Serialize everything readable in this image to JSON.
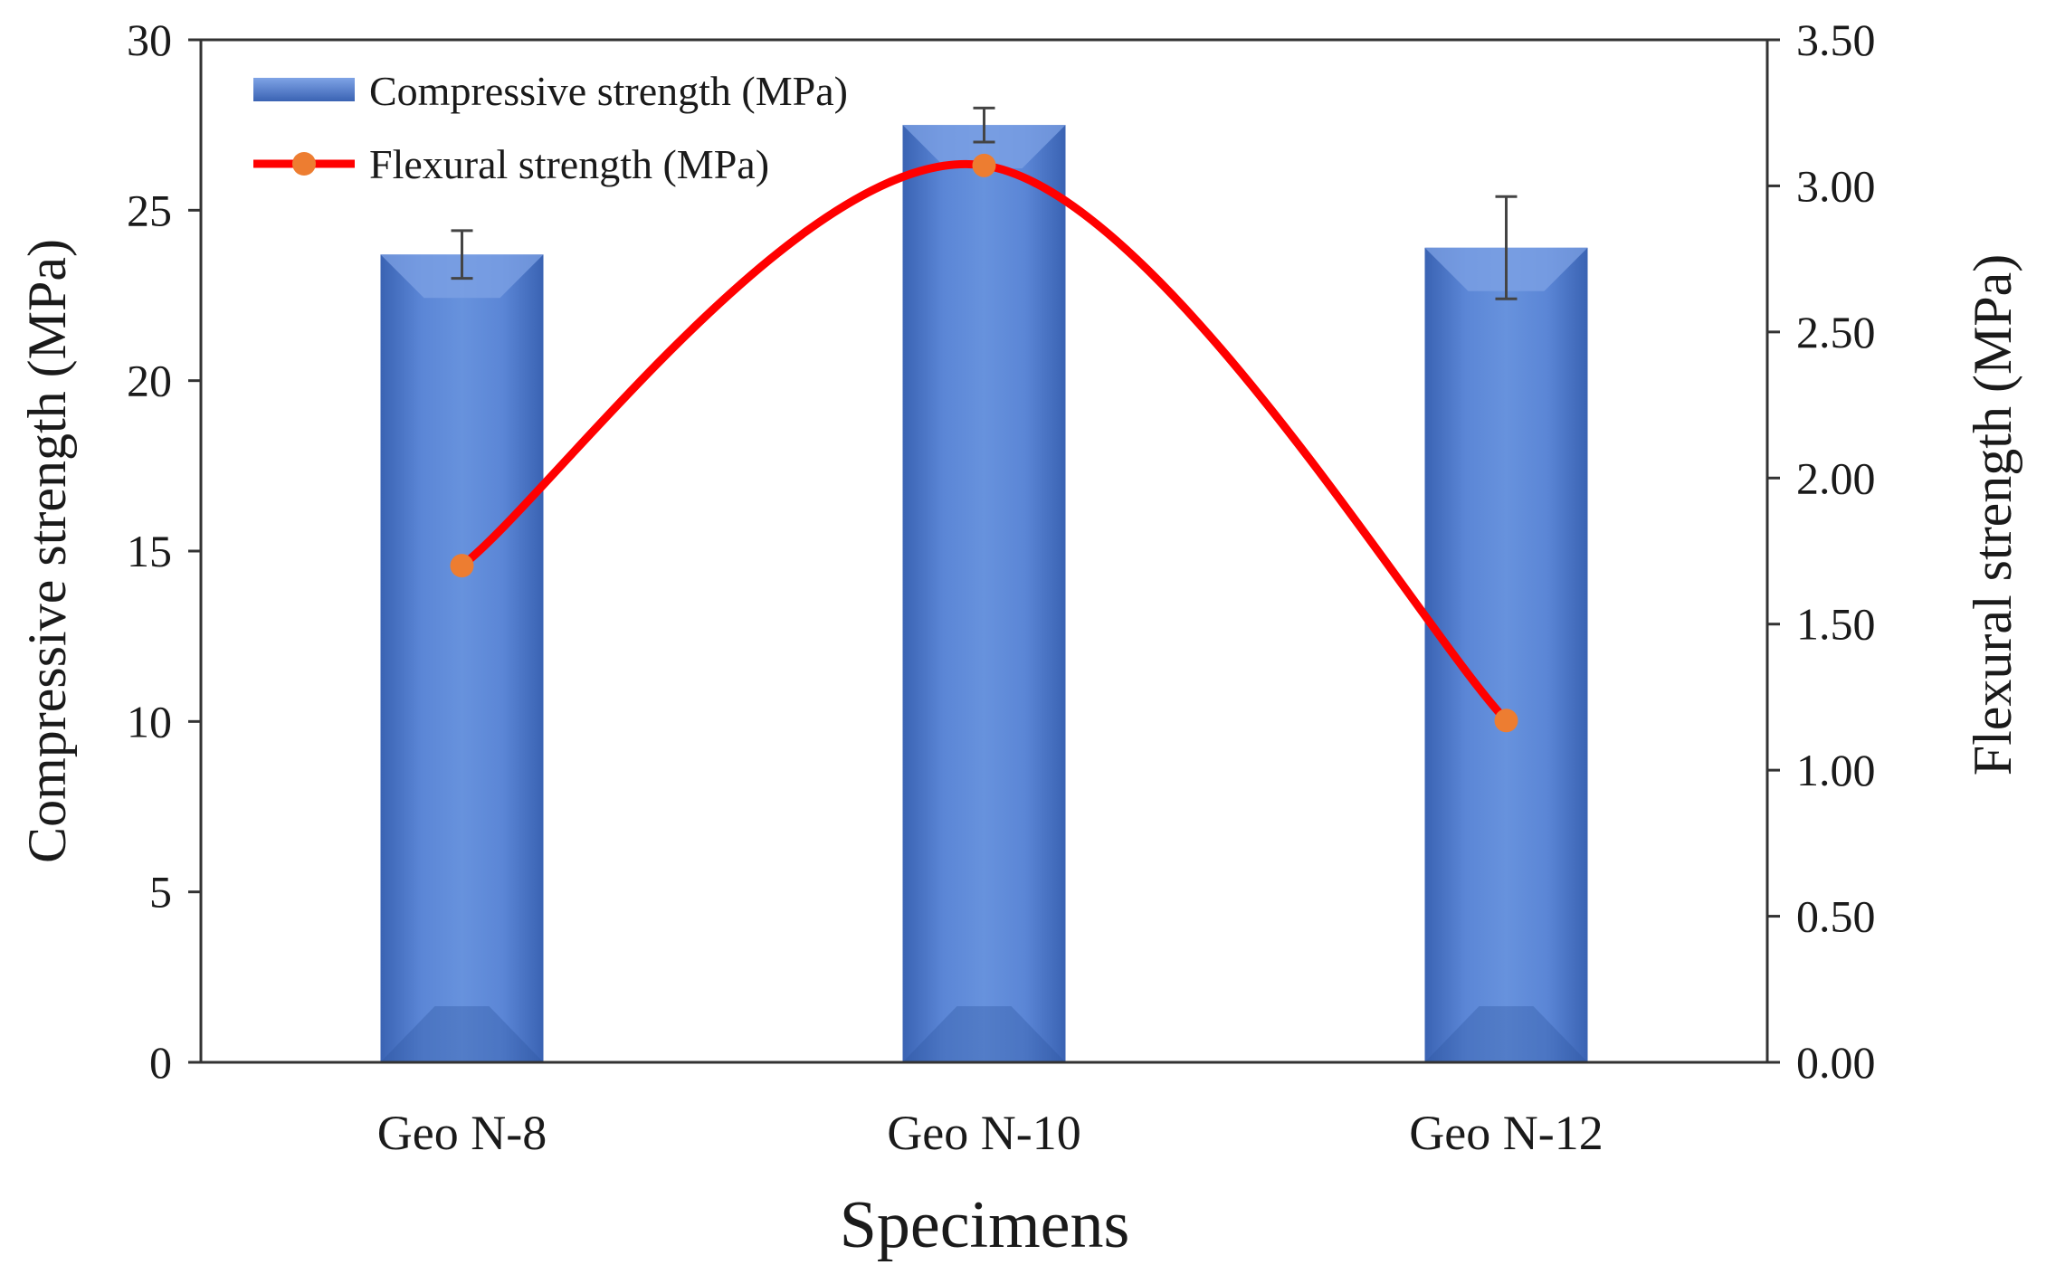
{
  "chart_data": {
    "type": "bar",
    "categories": [
      "Geo N-8",
      "Geo N-10",
      "Geo N-12"
    ],
    "series": [
      {
        "name": "Compressive strength (MPa)",
        "type": "bar",
        "axis": "left",
        "values": [
          23.7,
          27.5,
          23.9
        ],
        "errors": [
          0.7,
          0.5,
          1.5
        ],
        "color": "#4472C4"
      },
      {
        "name": "Flexural strength (MPa)",
        "type": "line",
        "axis": "right",
        "smooth": true,
        "values": [
          1.7,
          3.07,
          1.17
        ],
        "color": "#FF0000",
        "marker_color": "#ED7D31"
      }
    ],
    "xlabel": "Specimens",
    "ylabel": "Compressive strength (MPa)",
    "y2label": "Flexural strength (MPa)",
    "ylim": [
      0,
      30
    ],
    "y2lim": [
      0,
      3.5
    ],
    "yticks": [
      0,
      5,
      10,
      15,
      20,
      25,
      30
    ],
    "y2ticks": [
      "0.00",
      "0.50",
      "1.00",
      "1.50",
      "2.00",
      "2.50",
      "3.00",
      "3.50"
    ],
    "legend_position": "top-left",
    "grid": false
  }
}
